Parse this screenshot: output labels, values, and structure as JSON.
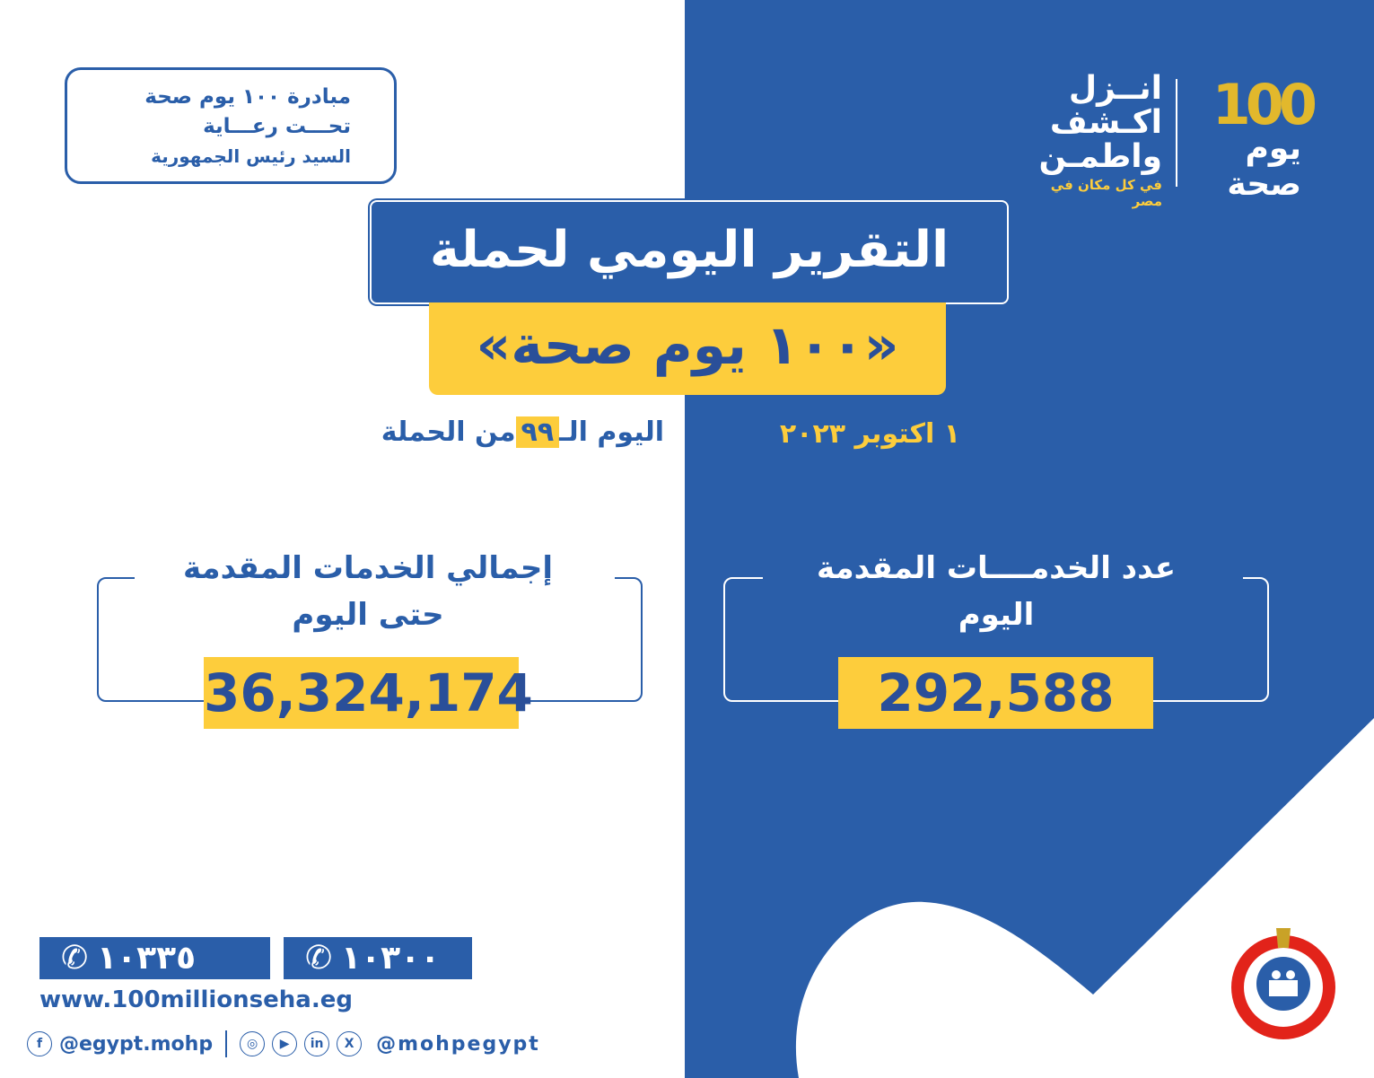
{
  "patron": {
    "line1": "مبادرة ١٠٠ يوم صحة",
    "line2": "تحـــت رعـــاية",
    "line3": "السيد رئيس الجمهورية"
  },
  "logo": {
    "number": "100",
    "sub": "يوم صحة",
    "words": [
      "انــزل",
      "اكـشف",
      "واطمـن"
    ],
    "tagline": "في كل مكان في مصر"
  },
  "title": {
    "line1": "التقرير اليومي لحملة",
    "line2": "«١٠٠ يوم صحة»"
  },
  "day": {
    "prefix": "اليوم الـ",
    "number": "٩٩",
    "suffix": "من الحملة"
  },
  "date": "١ اكتوبر ٢٠٢٣",
  "cards": {
    "total": {
      "title1": "إجمالي الخدمات المقدمة",
      "title2": "حتى اليوم",
      "value": "36,324,174"
    },
    "today": {
      "title1": "عدد الخدمــــات المقدمة",
      "title2": "اليوم",
      "value": "292,588"
    }
  },
  "contacts": {
    "phones": [
      "١٠٣٣٥",
      "١٠٣٠٠"
    ],
    "website": "www.100millionseha.eg",
    "facebook": "@egypt.mohp",
    "social_handle": "@mohpegypt"
  },
  "colors": {
    "blue": "#2a5ea9",
    "yellow": "#fdcd3c",
    "navy": "#2a4f99"
  }
}
